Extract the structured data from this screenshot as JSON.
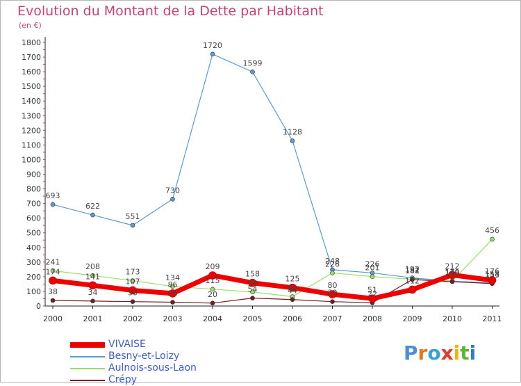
{
  "chart_data": {
    "type": "line",
    "title": "Evolution du Montant de la Dette par Habitant",
    "subtitle": "(en €)",
    "xlabel": "",
    "ylabel": "",
    "x": [
      "2000",
      "2001",
      "2002",
      "2003",
      "2004",
      "2005",
      "2006",
      "2007",
      "2008",
      "2009",
      "2010",
      "2011"
    ],
    "yticks": [
      0,
      100,
      200,
      300,
      400,
      500,
      600,
      700,
      800,
      900,
      1000,
      1100,
      1200,
      1300,
      1400,
      1500,
      1600,
      1700,
      1800
    ],
    "ylim": [
      0,
      1800
    ],
    "grid": false,
    "legend_position": "bottom-left",
    "series": [
      {
        "name": "VIVAISE",
        "color": "#ee0000",
        "values": [
          174,
          141,
          107,
          86,
          209,
          158,
          125,
          80,
          51,
          112,
          212,
          176
        ],
        "labels": [
          "174",
          "141",
          "107",
          "86",
          "209",
          "158",
          "125",
          "80",
          "51",
          "112",
          "212",
          "176"
        ]
      },
      {
        "name": "Besny-et-Loizy",
        "color": "#5b9bd0",
        "values": [
          693,
          622,
          551,
          730,
          1720,
          1599,
          1128,
          248,
          226,
          192,
          170,
          158
        ],
        "labels": [
          "693",
          "622",
          "551",
          "730",
          "1720",
          "1599",
          "1128",
          "248",
          "226",
          "192",
          "170",
          "158"
        ]
      },
      {
        "name": "Aulnois-sous-Laon",
        "color": "#99dd66",
        "values": [
          241,
          208,
          173,
          134,
          115,
          96,
          64,
          226,
          201,
          182,
          170,
          456
        ],
        "labels": [
          "241",
          "208",
          "173",
          "134",
          "115",
          "96",
          "64",
          "226",
          "201",
          "182",
          "170",
          "456"
        ]
      },
      {
        "name": "Crépy",
        "color": "#702020",
        "values": [
          38,
          34,
          30,
          26,
          20,
          54,
          44,
          30,
          22,
          181,
          166,
          153
        ],
        "labels": [
          "38",
          "34",
          "30",
          "26",
          "20",
          "54",
          "44",
          "30",
          "22",
          "181",
          "166",
          "153"
        ]
      }
    ]
  },
  "logo": {
    "letters": [
      {
        "ch": "P",
        "color": "#4a8fd6"
      },
      {
        "ch": "r",
        "color": "#e8741a"
      },
      {
        "ch": "o",
        "color": "#3aa0d8"
      },
      {
        "ch": "x",
        "color": "#e23b2e"
      },
      {
        "ch": "i",
        "color": "#f2b50f"
      },
      {
        "ch": "t",
        "color": "#5cb833"
      },
      {
        "ch": "i",
        "color": "#2f7fc8"
      }
    ]
  }
}
